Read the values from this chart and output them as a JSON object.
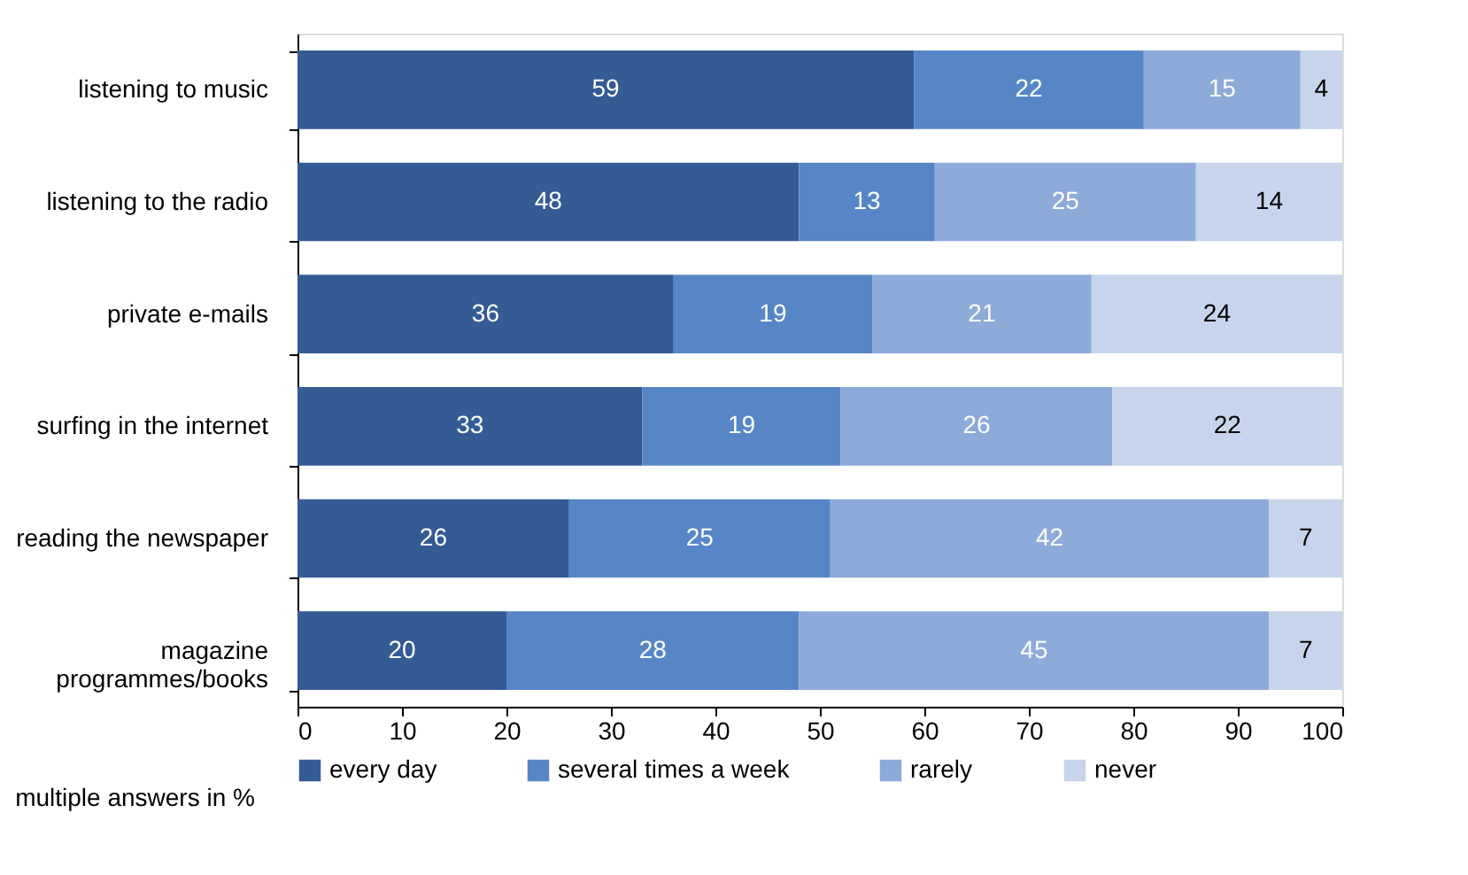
{
  "chart_data": {
    "type": "bar",
    "orientation": "horizontal",
    "stacked": true,
    "data_labels": true,
    "categories": [
      "listening to music",
      "listening to the radio",
      "private e-mails",
      "surfing in the internet",
      "reading the newspaper",
      "magazine\nprogrammes/books"
    ],
    "series": [
      {
        "name": "every day",
        "color": "#355b95",
        "values": [
          59,
          48,
          36,
          33,
          26,
          20
        ]
      },
      {
        "name": "several times a week",
        "color": "#5686c6",
        "values": [
          22,
          13,
          19,
          19,
          25,
          28
        ]
      },
      {
        "name": "rarely",
        "color": "#8eaad8",
        "values": [
          15,
          25,
          21,
          26,
          42,
          45
        ]
      },
      {
        "name": "never",
        "color": "#c6d5eb",
        "values": [
          4,
          14,
          24,
          22,
          7,
          7
        ]
      }
    ],
    "xlim": [
      0,
      100
    ],
    "xticks": [
      0,
      10,
      20,
      30,
      40,
      50,
      60,
      70,
      80,
      90,
      100
    ],
    "grid": false,
    "legend": "bottom",
    "annotations": [
      "multiple answers in %"
    ]
  }
}
